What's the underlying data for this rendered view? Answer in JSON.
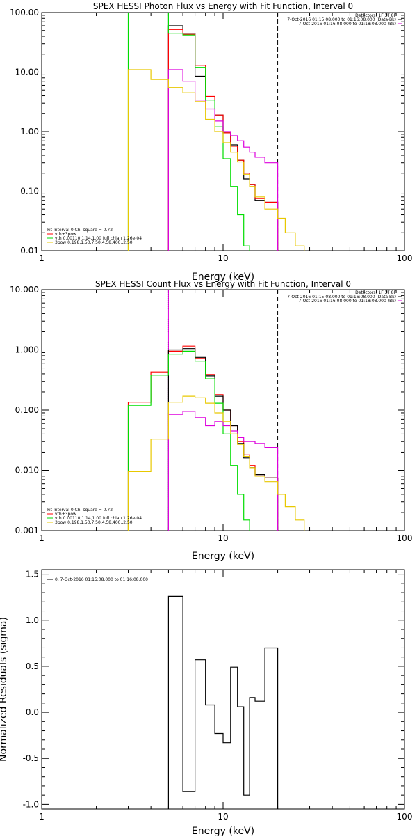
{
  "chart_data": [
    {
      "type": "line",
      "title": "SPEX HESSI Photon Flux vs Energy with Fit Function, Interval 0",
      "xlabel": "Energy (keV)",
      "ylabel": "",
      "xscale": "log",
      "yscale": "log",
      "xlim": [
        1,
        100
      ],
      "ylim": [
        0.01,
        100
      ],
      "xticks": [
        "1",
        "10",
        "100"
      ],
      "yticks": [
        "0.01",
        "0.10",
        "1.00",
        "10.00",
        "100.00"
      ],
      "header_right": [
        "Detectors: 1F 3F 8F",
        "7-Oct-2016 01:15:08.000 to 01:16:08.000 (Data-Bk)",
        "7-Oct-2016 01:16:08.000 to 01:18:08.000 (Bk)"
      ],
      "legend": [
        "Fit Interval 0   Chi-square = 0.72",
        "vth+3pow",
        "vth 0.00110,1.14,1.00  full chian 1.26e-04",
        "3pow 0.198,1.50,7.50,4.58,400.,2.50"
      ],
      "legend_colors": [
        "#000000",
        "#ff0000",
        "#00dd00",
        "#e8c800"
      ],
      "vlines": [
        {
          "x": 5,
          "style": "solid",
          "color": "#dd00dd"
        },
        {
          "x": 20,
          "style": "dashed",
          "color": "#000000"
        }
      ],
      "series": [
        {
          "color": "#000000",
          "edges": [
            5,
            6,
            7,
            8,
            9,
            10,
            11,
            12,
            13,
            14,
            15,
            17,
            20
          ],
          "values": [
            60,
            45,
            8.5,
            3.8,
            1.9,
            0.95,
            0.6,
            0.33,
            0.16,
            0.13,
            0.07,
            0.065
          ]
        },
        {
          "color": "#ff0000",
          "edges": [
            5,
            6,
            7,
            8,
            9,
            10,
            11,
            12,
            13,
            14,
            15,
            17,
            20
          ],
          "values": [
            52,
            43,
            13,
            3.9,
            1.9,
            0.95,
            0.57,
            0.33,
            0.2,
            0.13,
            0.075,
            0.065
          ]
        },
        {
          "color": "#00dd00",
          "edges": [
            3,
            5,
            6,
            7,
            8,
            9,
            10,
            11,
            12,
            13,
            14
          ],
          "values": [
            500,
            45,
            42,
            12,
            3.4,
            1.2,
            0.35,
            0.12,
            0.04,
            0.012
          ]
        },
        {
          "color": "#dd00dd",
          "edges": [
            5,
            6,
            7,
            8,
            9,
            10,
            11,
            12,
            13,
            14,
            15,
            17,
            20
          ],
          "values": [
            11,
            7,
            3.4,
            2.4,
            1.5,
            1.0,
            0.85,
            0.7,
            0.55,
            0.45,
            0.37,
            0.3
          ]
        },
        {
          "color": "#e8c800",
          "edges": [
            3,
            4,
            5,
            6,
            7,
            8,
            9,
            10,
            11,
            12,
            13,
            14,
            15,
            17,
            20,
            22,
            25,
            28
          ],
          "values": [
            11,
            7.5,
            5.5,
            4.5,
            3.2,
            1.6,
            1.0,
            0.65,
            0.45,
            0.31,
            0.19,
            0.12,
            0.08,
            0.05,
            0.035,
            0.02,
            0.012
          ]
        }
      ]
    },
    {
      "type": "line",
      "title": "SPEX HESSI Count Flux vs Energy with Fit Function, Interval 0",
      "xlabel": "Energy (keV)",
      "ylabel": "",
      "xscale": "log",
      "yscale": "log",
      "xlim": [
        1,
        100
      ],
      "ylim": [
        0.001,
        10
      ],
      "xticks": [
        "1",
        "10",
        "100"
      ],
      "yticks": [
        "0.001",
        "0.010",
        "0.100",
        "1.000",
        "10.000"
      ],
      "header_right": [
        "Detectors: 1F 3F 8F",
        "7-Oct-2016 01:15:08.000 to 01:16:08.000 (Data-Bk)",
        "7-Oct-2016 01:16:08.000 to 01:18:08.000 (Bk)"
      ],
      "legend": [
        "Fit Interval 0   Chi-square = 0.72",
        "vth+3pow",
        "vth 0.00110,1.14,1.00  full chian 1.26e-04",
        "3pow 0.198,1.50,7.50,4.58,400.,2.50"
      ],
      "legend_colors": [
        "#000000",
        "#ff0000",
        "#00dd00",
        "#e8c800"
      ],
      "vlines": [
        {
          "x": 5,
          "style": "dotted",
          "color": "#000000"
        },
        {
          "x": 5,
          "style": "solid",
          "color": "#dd00dd"
        },
        {
          "x": 20,
          "style": "dashed",
          "color": "#000000"
        }
      ],
      "series": [
        {
          "color": "#ff0000",
          "edges": [
            3,
            4,
            5,
            6,
            7,
            8,
            9,
            10,
            11,
            12,
            13,
            14,
            15,
            17,
            20
          ],
          "values": [
            0.135,
            0.43,
            0.95,
            1.15,
            0.72,
            0.39,
            0.18,
            0.1,
            0.055,
            0.03,
            0.018,
            0.012,
            0.0085,
            0.0075
          ]
        },
        {
          "color": "#000000",
          "edges": [
            5,
            6,
            7,
            8,
            9,
            10,
            11,
            12,
            13,
            14,
            15,
            17,
            20
          ],
          "values": [
            1.0,
            1.05,
            0.75,
            0.37,
            0.17,
            0.1,
            0.055,
            0.028,
            0.016,
            0.011,
            0.0085,
            0.0075
          ]
        },
        {
          "color": "#00dd00",
          "edges": [
            3,
            4,
            5,
            6,
            7,
            8,
            9,
            10,
            11,
            12,
            13,
            14
          ],
          "values": [
            0.12,
            0.38,
            0.85,
            0.95,
            0.65,
            0.33,
            0.13,
            0.04,
            0.012,
            0.004,
            0.0015
          ]
        },
        {
          "color": "#dd00dd",
          "edges": [
            5,
            6,
            7,
            8,
            9,
            10,
            11,
            12,
            13,
            14,
            15,
            17,
            20
          ],
          "values": [
            0.085,
            0.095,
            0.075,
            0.055,
            0.065,
            0.055,
            0.045,
            0.035,
            0.03,
            0.03,
            0.028,
            0.024
          ]
        },
        {
          "color": "#e8c800",
          "edges": [
            3,
            4,
            5,
            6,
            7,
            8,
            9,
            10,
            11,
            12,
            13,
            14,
            15,
            17,
            20,
            22,
            25,
            28
          ],
          "values": [
            0.0095,
            0.033,
            0.135,
            0.17,
            0.16,
            0.13,
            0.09,
            0.065,
            0.04,
            0.027,
            0.017,
            0.011,
            0.008,
            0.0065,
            0.004,
            0.0025,
            0.0015
          ]
        }
      ]
    },
    {
      "type": "line",
      "title": "",
      "xlabel": "Energy (keV)",
      "ylabel": "Normalized Residuals (sigma)",
      "xscale": "log",
      "yscale": "linear",
      "xlim": [
        1,
        100
      ],
      "ylim": [
        -1.05,
        1.55
      ],
      "xticks": [
        "1",
        "10",
        "100"
      ],
      "yticks": [
        "-1.0",
        "-0.5",
        "0.0",
        "0.5",
        "1.0",
        "1.5"
      ],
      "legend": [
        "0.  7-Oct-2016 01:15:08.000 to 01:16:08.000"
      ],
      "legend_colors": [
        "#000000"
      ],
      "series": [
        {
          "color": "#000000",
          "edges": [
            5,
            6,
            7,
            8,
            9,
            10,
            11,
            12,
            13,
            14,
            15,
            17,
            20
          ],
          "values": [
            1.26,
            -0.86,
            0.57,
            0.08,
            -0.23,
            -0.33,
            0.49,
            0.06,
            -0.9,
            0.16,
            0.12,
            0.7
          ]
        }
      ]
    }
  ]
}
